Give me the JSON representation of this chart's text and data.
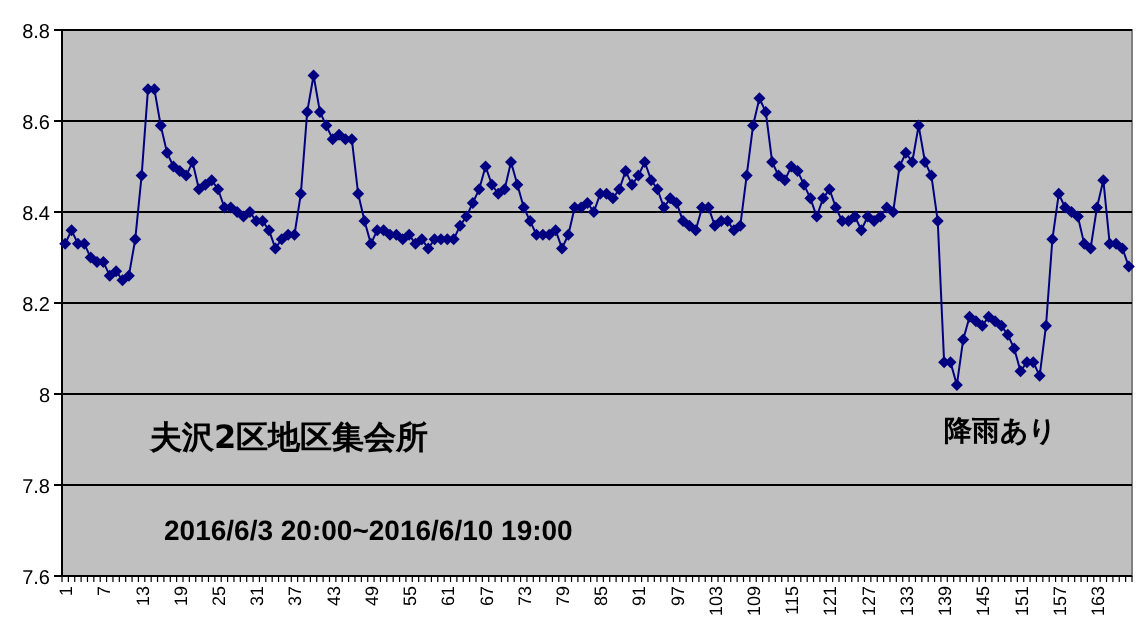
{
  "chart_data": {
    "type": "line",
    "title": "夫沢2区地区集会所",
    "subtitle": "2016/6/3 20:00~2016/6/10 19:00",
    "annotations": [
      "降雨あり"
    ],
    "categories": [
      "1",
      null,
      null,
      null,
      null,
      null,
      "7",
      null,
      null,
      null,
      null,
      null,
      "13",
      null,
      null,
      null,
      null,
      null,
      "19",
      null,
      null,
      null,
      null,
      null,
      "25",
      null,
      null,
      null,
      null,
      null,
      "31",
      null,
      null,
      null,
      null,
      null,
      "37",
      null,
      null,
      null,
      null,
      null,
      "43",
      null,
      null,
      null,
      null,
      null,
      "49",
      null,
      null,
      null,
      null,
      null,
      "55",
      null,
      null,
      null,
      null,
      null,
      "61",
      null,
      null,
      null,
      null,
      null,
      "67",
      null,
      null,
      null,
      null,
      null,
      "73",
      null,
      null,
      null,
      null,
      null,
      "79",
      null,
      null,
      null,
      null,
      null,
      "85",
      null,
      null,
      null,
      null,
      null,
      "91",
      null,
      null,
      null,
      null,
      null,
      "97",
      null,
      null,
      null,
      null,
      null,
      "103",
      null,
      null,
      null,
      null,
      null,
      "109",
      null,
      null,
      null,
      null,
      null,
      "115",
      null,
      null,
      null,
      null,
      null,
      "121",
      null,
      null,
      null,
      null,
      null,
      "127",
      null,
      null,
      null,
      null,
      null,
      "133",
      null,
      null,
      null,
      null,
      null,
      "139",
      null,
      null,
      null,
      null,
      null,
      "145",
      null,
      null,
      null,
      null,
      null,
      "151",
      null,
      null,
      null,
      null,
      null,
      "157",
      null,
      null,
      null,
      null,
      null,
      "163",
      null,
      null,
      null,
      null,
      null
    ],
    "series": [
      {
        "color": "#000080",
        "values": [
          8.33,
          8.36,
          8.33,
          8.33,
          8.3,
          8.29,
          8.29,
          8.26,
          8.27,
          8.25,
          8.26,
          8.34,
          8.48,
          8.67,
          8.67,
          8.59,
          8.53,
          8.5,
          8.49,
          8.48,
          8.51,
          8.45,
          8.46,
          8.47,
          8.45,
          8.41,
          8.41,
          8.4,
          8.39,
          8.4,
          8.38,
          8.38,
          8.36,
          8.32,
          8.34,
          8.35,
          8.35,
          8.44,
          8.62,
          8.7,
          8.62,
          8.59,
          8.56,
          8.57,
          8.56,
          8.56,
          8.44,
          8.38,
          8.33,
          8.36,
          8.36,
          8.35,
          8.35,
          8.34,
          8.35,
          8.33,
          8.34,
          8.32,
          8.34,
          8.34,
          8.34,
          8.34,
          8.37,
          8.39,
          8.42,
          8.45,
          8.5,
          8.46,
          8.44,
          8.45,
          8.51,
          8.46,
          8.41,
          8.38,
          8.35,
          8.35,
          8.35,
          8.36,
          8.32,
          8.35,
          8.41,
          8.41,
          8.42,
          8.4,
          8.44,
          8.44,
          8.43,
          8.45,
          8.49,
          8.46,
          8.48,
          8.51,
          8.47,
          8.45,
          8.41,
          8.43,
          8.42,
          8.38,
          8.37,
          8.36,
          8.41,
          8.41,
          8.37,
          8.38,
          8.38,
          8.36,
          8.37,
          8.48,
          8.59,
          8.65,
          8.62,
          8.51,
          8.48,
          8.47,
          8.5,
          8.49,
          8.46,
          8.43,
          8.39,
          8.43,
          8.45,
          8.41,
          8.38,
          8.38,
          8.39,
          8.36,
          8.39,
          8.38,
          8.39,
          8.41,
          8.4,
          8.5,
          8.53,
          8.51,
          8.59,
          8.51,
          8.48,
          8.38,
          8.07,
          8.07,
          8.02,
          8.12,
          8.17,
          8.16,
          8.15,
          8.17,
          8.16,
          8.15,
          8.13,
          8.1,
          8.05,
          8.07,
          8.07,
          8.04,
          8.15,
          8.34,
          8.44,
          8.41,
          8.4,
          8.39,
          8.33,
          8.32,
          8.41,
          8.47,
          8.33,
          8.33,
          8.32,
          8.28
        ]
      }
    ],
    "ylim": [
      7.6,
      8.8
    ],
    "yticks": [
      7.6,
      7.8,
      8,
      8.2,
      8.4,
      8.6,
      8.8
    ],
    "grid": "y",
    "marker": "diamond",
    "line_style": "solid"
  }
}
